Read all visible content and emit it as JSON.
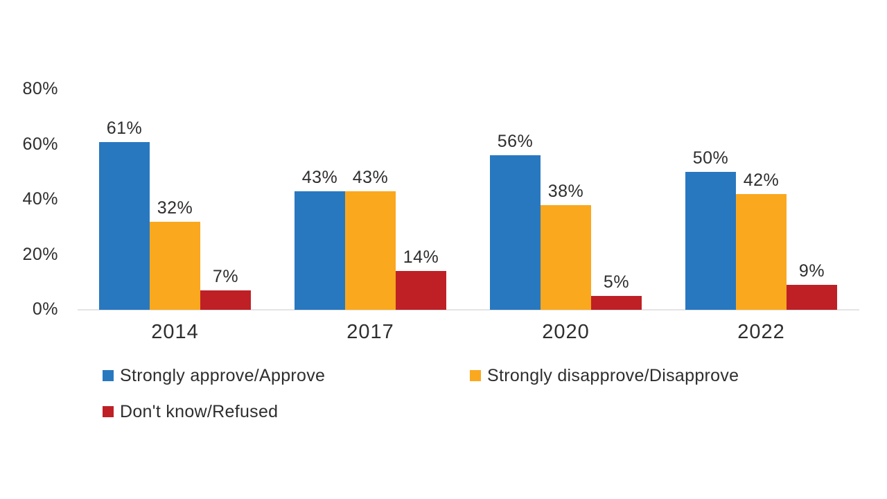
{
  "chart_data": {
    "type": "bar",
    "title": "",
    "xlabel": "",
    "ylabel": "",
    "categories": [
      "2014",
      "2017",
      "2020",
      "2022"
    ],
    "series": [
      {
        "name": "Strongly approve/Approve",
        "color": "#2878C0",
        "values": [
          61,
          43,
          56,
          50
        ]
      },
      {
        "name": "Strongly disapprove/Disapprove",
        "color": "#FAA81E",
        "values": [
          32,
          43,
          38,
          42
        ]
      },
      {
        "name": "Don't know/Refused",
        "color": "#BE2026",
        "values": [
          7,
          14,
          5,
          9
        ]
      }
    ],
    "value_label_suffix": "%",
    "yticks": [
      0,
      20,
      40,
      60,
      80
    ],
    "ytick_labels": [
      "0%",
      "20%",
      "40%",
      "60%",
      "80%"
    ],
    "ylim": [
      0,
      80
    ],
    "grid": false,
    "legend_position": "bottom",
    "axis_line_color": "#e4e4e4",
    "text_color": "#2e2e2e",
    "background_color": "#ffffff"
  }
}
